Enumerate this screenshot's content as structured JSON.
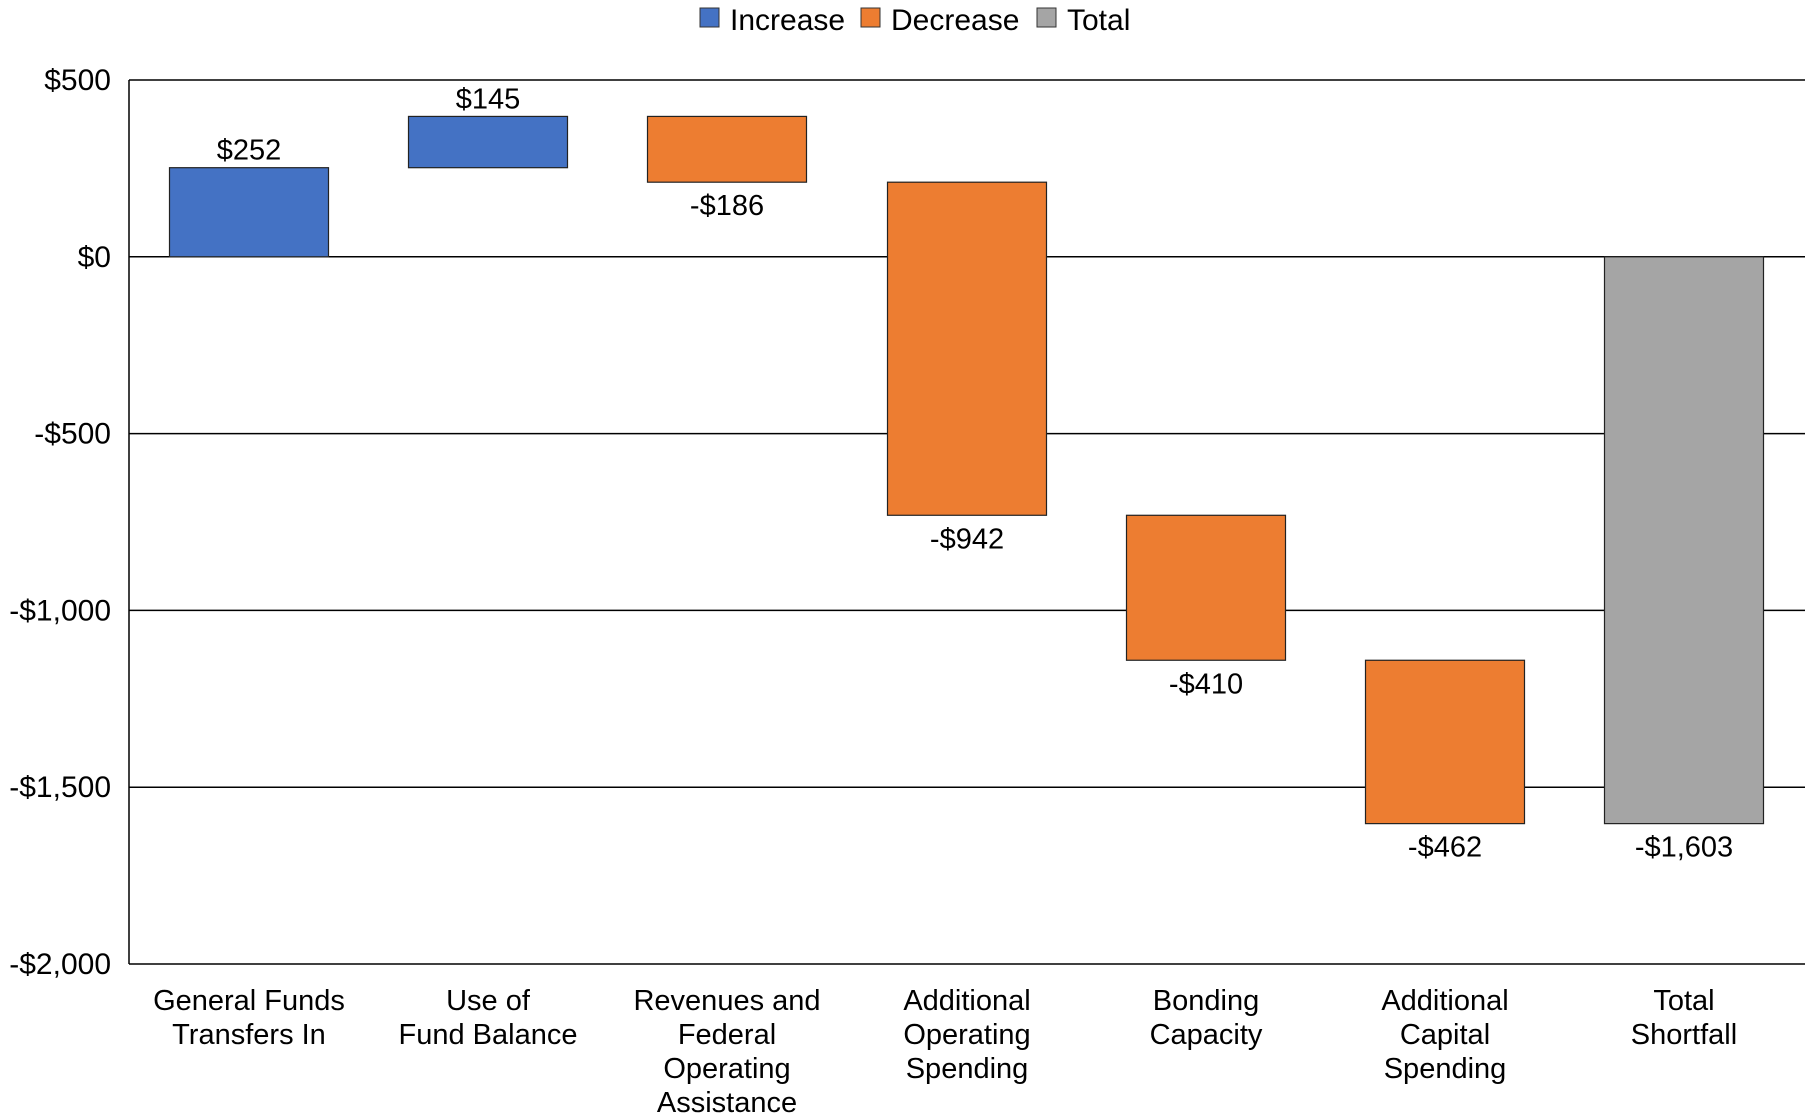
{
  "chart_data": {
    "type": "bar",
    "subtype": "waterfall",
    "title": "",
    "xlabel": "",
    "ylabel": "",
    "ylim": [
      -2000,
      500
    ],
    "yticks": [
      500,
      0,
      -500,
      -1000,
      -1500,
      -2000
    ],
    "ytick_labels": [
      "$500",
      "$0",
      "-$500",
      "-$1,000",
      "-$1,500",
      "-$2,000"
    ],
    "grid": true,
    "legend_position": "top-center",
    "legend": [
      {
        "label": "Increase",
        "color": "#4472c4"
      },
      {
        "label": "Decrease",
        "color": "#ed7d31"
      },
      {
        "label": "Total",
        "color": "#a5a5a5"
      }
    ],
    "categories": [
      [
        "General Funds",
        "Transfers In"
      ],
      [
        "Use of",
        "Fund Balance"
      ],
      [
        "Revenues and",
        "Federal",
        "Operating",
        "Assistance"
      ],
      [
        "Additional",
        "Operating",
        "Spending"
      ],
      [
        "Bonding",
        "Capacity"
      ],
      [
        "Additional",
        "Capital",
        "Spending"
      ],
      [
        "Total",
        "Shortfall"
      ]
    ],
    "values": [
      252,
      145,
      -186,
      -942,
      -410,
      -462,
      -1603
    ],
    "kinds": [
      "Increase",
      "Increase",
      "Decrease",
      "Decrease",
      "Decrease",
      "Decrease",
      "Total"
    ],
    "data_labels": [
      "$252",
      "$145",
      "-$186",
      "-$942",
      "-$410",
      "-$462",
      "-$1,603"
    ]
  }
}
